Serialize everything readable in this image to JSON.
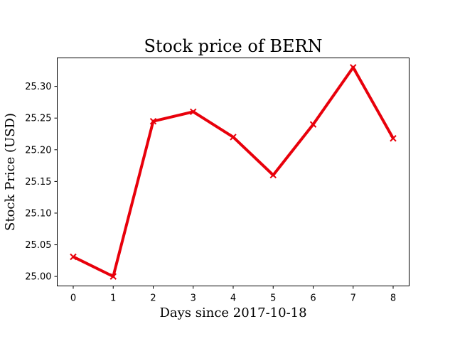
{
  "chart_data": {
    "type": "line",
    "title": "Stock price of BERN",
    "xlabel": "Days since 2017-10-18",
    "ylabel": "Stock Price (USD)",
    "x": [
      0,
      1,
      2,
      3,
      4,
      5,
      6,
      7,
      8
    ],
    "series": [
      {
        "values": [
          25.031,
          25.0,
          25.245,
          25.26,
          25.22,
          25.16,
          25.24,
          25.33,
          25.218
        ],
        "color": "#e8000b",
        "marker": "x"
      }
    ],
    "xlim": [
      -0.4,
      8.4
    ],
    "ylim": [
      24.985,
      25.345
    ],
    "x_ticks": [
      "0",
      "1",
      "2",
      "3",
      "4",
      "5",
      "6",
      "7",
      "8"
    ],
    "y_ticks": [
      "25.00",
      "25.05",
      "25.10",
      "25.15",
      "25.20",
      "25.25",
      "25.30"
    ],
    "grid": false,
    "legend": "none"
  }
}
